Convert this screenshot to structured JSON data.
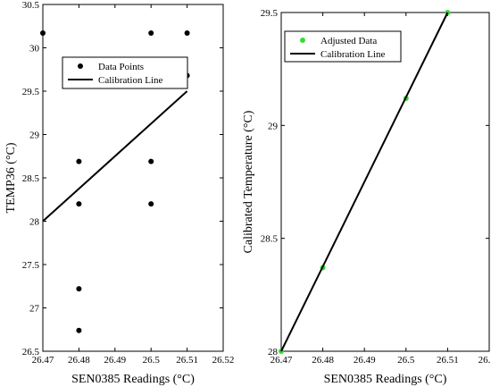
{
  "chart_data": [
    {
      "type": "scatter",
      "xlabel": "SEN0385 Readings (°C)",
      "ylabel": "TEMP36 (°C)",
      "xlim": [
        26.47,
        26.52
      ],
      "ylim": [
        26.5,
        30.5
      ],
      "xticks": [
        "26.47",
        "26.48",
        "26.49",
        "26.5",
        "26.51",
        "26.52"
      ],
      "yticks": [
        "26.5",
        "27",
        "27.5",
        "28",
        "28.5",
        "29",
        "29.5",
        "30",
        "30.5"
      ],
      "grid": false,
      "legend_position": "top-center",
      "series": [
        {
          "name": "Data Points",
          "kind": "scatter",
          "color": "#000000",
          "x": [
            26.47,
            26.48,
            26.48,
            26.48,
            26.48,
            26.5,
            26.5,
            26.5,
            26.51,
            26.51
          ],
          "y": [
            30.17,
            28.69,
            28.2,
            27.22,
            26.74,
            30.17,
            28.69,
            28.2,
            30.17,
            29.68
          ]
        },
        {
          "name": "Calibration Line",
          "kind": "line",
          "color": "#000000",
          "x": [
            26.47,
            26.51
          ],
          "y": [
            28.0,
            29.5
          ]
        }
      ]
    },
    {
      "type": "scatter",
      "xlabel": "SEN0385 Readings (°C)",
      "ylabel": "Calibrated Temperature (°C)",
      "xlim": [
        26.47,
        26.52
      ],
      "ylim": [
        28.0,
        29.5
      ],
      "xticks": [
        "26.47",
        "26.48",
        "26.49",
        "26.5",
        "26.51",
        "26.52"
      ],
      "yticks": [
        "28",
        "28.5",
        "29",
        "29.5"
      ],
      "grid": false,
      "legend_position": "top-left",
      "series": [
        {
          "name": "Adjusted Data",
          "kind": "scatter",
          "color": "#33dd33",
          "x": [
            26.47,
            26.48,
            26.5,
            26.51
          ],
          "y": [
            28.0,
            28.37,
            29.12,
            29.5
          ]
        },
        {
          "name": "Calibration Line",
          "kind": "line",
          "color": "#000000",
          "x": [
            26.47,
            26.51
          ],
          "y": [
            28.0,
            29.5
          ]
        }
      ]
    }
  ]
}
